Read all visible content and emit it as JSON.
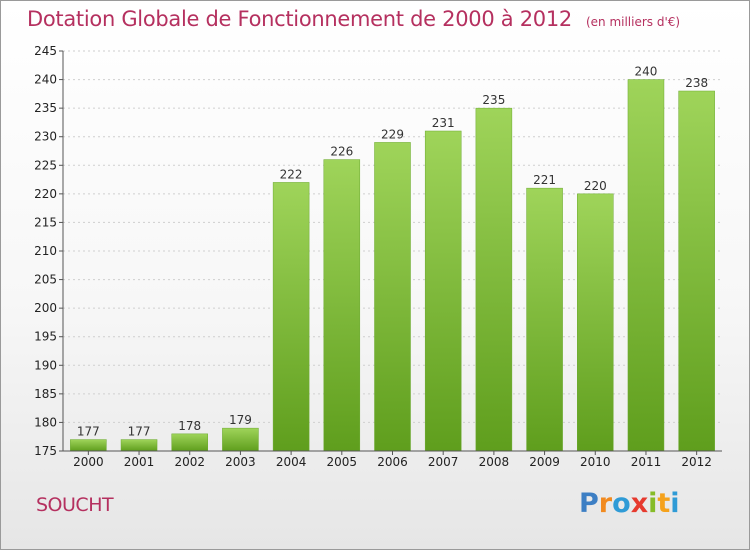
{
  "chart_data": {
    "type": "bar",
    "title": "Dotation Globale de Fonctionnement de 2000 à 2012",
    "unit": "(en milliers d'€)",
    "categories": [
      "2000",
      "2001",
      "2002",
      "2003",
      "2004",
      "2005",
      "2006",
      "2007",
      "2008",
      "2009",
      "2010",
      "2011",
      "2012"
    ],
    "values": [
      177,
      177,
      178,
      179,
      222,
      226,
      229,
      231,
      235,
      221,
      220,
      240,
      238
    ],
    "ylim": [
      175,
      245
    ],
    "yticks": [
      175,
      180,
      185,
      190,
      195,
      200,
      205,
      210,
      215,
      220,
      225,
      230,
      235,
      240,
      245
    ],
    "grid": true,
    "bar_color": "#7dc242"
  },
  "commune": "SOUCHT",
  "logo": {
    "letters": [
      "P",
      "r",
      "o",
      "x",
      "i",
      "t",
      "i"
    ],
    "colors": [
      "#3d7fc4",
      "#f18a1f",
      "#2f9bd6",
      "#e63a2e",
      "#86bc28",
      "#f5a21c",
      "#2f9bd6"
    ]
  }
}
